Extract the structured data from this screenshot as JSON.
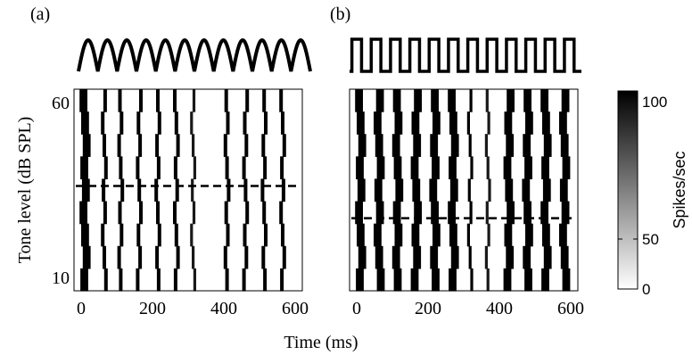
{
  "figure": {
    "shared_xlabel": "Time (ms)",
    "colorbar": {
      "label": "Spikes/sec",
      "ticks": [
        "0",
        "50",
        "100"
      ],
      "range": [
        0,
        100
      ],
      "colormap": [
        "#ffffff",
        "#000000"
      ]
    }
  },
  "chart_data": [
    {
      "type": "heatmap",
      "panel_label": "(a)",
      "stimulus_waveform": "sinusoidal",
      "modulation_cycles": 12,
      "ylabel": "Tone level (dB SPL)",
      "xlabel": "Time (ms)",
      "xlim": [
        -20,
        620
      ],
      "ylim": [
        10,
        60
      ],
      "xticks": [
        "0",
        "200",
        "400",
        "600"
      ],
      "yticks": [
        "10",
        "60"
      ],
      "threshold_level_db": 36,
      "response_bands": [
        {
          "t": 0,
          "w": 22,
          "v": 100
        },
        {
          "t": 60,
          "w": 10,
          "v": 100
        },
        {
          "t": 106,
          "w": 10,
          "v": 100
        },
        {
          "t": 158,
          "w": 10,
          "v": 100
        },
        {
          "t": 210,
          "w": 10,
          "v": 100
        },
        {
          "t": 262,
          "w": 10,
          "v": 100
        },
        {
          "t": 310,
          "w": 8,
          "v": 90
        },
        {
          "t": 404,
          "w": 10,
          "v": 100
        },
        {
          "t": 456,
          "w": 10,
          "v": 100
        },
        {
          "t": 508,
          "w": 10,
          "v": 100
        },
        {
          "t": 560,
          "w": 10,
          "v": 100
        }
      ]
    },
    {
      "type": "heatmap",
      "panel_label": "(b)",
      "stimulus_waveform": "square",
      "modulation_cycles": 12,
      "ylabel": "",
      "xlabel": "Time (ms)",
      "xlim": [
        -20,
        620
      ],
      "ylim": [
        10,
        60
      ],
      "xticks": [
        "0",
        "200",
        "400",
        "600"
      ],
      "yticks": [],
      "threshold_level_db": 28,
      "response_bands": [
        {
          "t": 0,
          "w": 22,
          "v": 100
        },
        {
          "t": 52,
          "w": 22,
          "v": 100
        },
        {
          "t": 104,
          "w": 22,
          "v": 100
        },
        {
          "t": 156,
          "w": 22,
          "v": 100
        },
        {
          "t": 208,
          "w": 22,
          "v": 100
        },
        {
          "t": 260,
          "w": 22,
          "v": 100
        },
        {
          "t": 314,
          "w": 8,
          "v": 100
        },
        {
          "t": 364,
          "w": 8,
          "v": 90
        },
        {
          "t": 416,
          "w": 22,
          "v": 100
        },
        {
          "t": 468,
          "w": 22,
          "v": 100
        },
        {
          "t": 520,
          "w": 22,
          "v": 100
        },
        {
          "t": 572,
          "w": 22,
          "v": 100
        }
      ]
    }
  ]
}
